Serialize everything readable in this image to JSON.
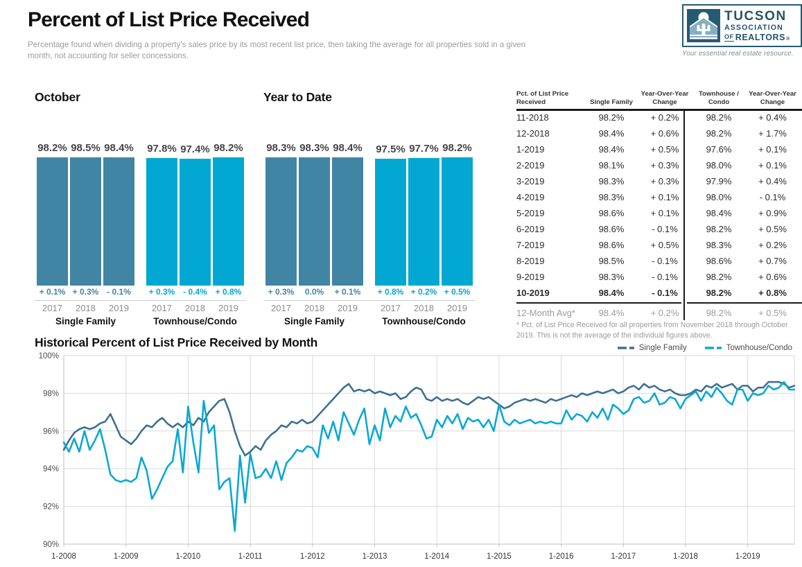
{
  "page": {
    "title": "Percent of List Price Received",
    "subtitle": "Percentage found when dividing a property's sales price by its most recent list price, then taking the average for all properties sold in a given month, not accounting for seller concessions."
  },
  "logo": {
    "name_top": "TUCSON",
    "name_mid": "ASSOCIATION",
    "name_of": "OF",
    "name_bottom": "REALTORS",
    "reg_mark": "®",
    "tagline": "Your essential real estate resource."
  },
  "colors": {
    "single_family": "#4185a5",
    "townhouse_condo": "#02a8d1",
    "single_family_line": "#3e708f",
    "townhouse_condo_line": "#09a8d4",
    "grid": "#d9d9d9",
    "axis": "#bfbfbf"
  },
  "chart_data": [
    {
      "id": "october-bars",
      "type": "bar",
      "title": "October",
      "ylim": [
        0,
        100
      ],
      "groups": [
        {
          "label": "Single Family",
          "color_key": "single_family",
          "years": [
            "2017",
            "2018",
            "2019"
          ],
          "values": [
            98.2,
            98.5,
            98.4
          ],
          "value_labels": [
            "98.2%",
            "98.5%",
            "98.4%"
          ],
          "yoy_changes": [
            "+ 0.1%",
            "+ 0.3%",
            "- 0.1%"
          ]
        },
        {
          "label": "Townhouse/Condo",
          "color_key": "townhouse_condo",
          "years": [
            "2017",
            "2018",
            "2019"
          ],
          "values": [
            97.8,
            97.4,
            98.2
          ],
          "value_labels": [
            "97.8%",
            "97.4%",
            "98.2%"
          ],
          "yoy_changes": [
            "+ 0.3%",
            "- 0.4%",
            "+ 0.8%"
          ]
        }
      ]
    },
    {
      "id": "ytd-bars",
      "type": "bar",
      "title": "Year to Date",
      "ylim": [
        0,
        100
      ],
      "groups": [
        {
          "label": "Single Family",
          "color_key": "single_family",
          "years": [
            "2017",
            "2018",
            "2019"
          ],
          "values": [
            98.3,
            98.3,
            98.4
          ],
          "value_labels": [
            "98.3%",
            "98.3%",
            "98.4%"
          ],
          "yoy_changes": [
            "+ 0.3%",
            "0.0%",
            "+ 0.1%"
          ]
        },
        {
          "label": "Townhouse/Condo",
          "color_key": "townhouse_condo",
          "years": [
            "2017",
            "2018",
            "2019"
          ],
          "values": [
            97.5,
            97.7,
            98.2
          ],
          "value_labels": [
            "97.5%",
            "97.7%",
            "98.2%"
          ],
          "yoy_changes": [
            "+ 0.8%",
            "+ 0.2%",
            "+ 0.5%"
          ]
        }
      ]
    },
    {
      "id": "monthly-table",
      "type": "table",
      "columns": [
        "Pct. of List Price Received",
        "Single Family",
        "Year-Over-Year Change",
        "Townhouse / Condo",
        "Year-Over-Year Change"
      ],
      "rows": [
        [
          "11-2018",
          "98.2%",
          "+ 0.2%",
          "98.2%",
          "+ 0.4%"
        ],
        [
          "12-2018",
          "98.4%",
          "+ 0.6%",
          "98.2%",
          "+ 1.7%"
        ],
        [
          "1-2019",
          "98.4%",
          "+ 0.5%",
          "97.6%",
          "+ 0.1%"
        ],
        [
          "2-2019",
          "98.1%",
          "+ 0.3%",
          "98.0%",
          "+ 0.1%"
        ],
        [
          "3-2019",
          "98.3%",
          "+ 0.3%",
          "97.9%",
          "+ 0.4%"
        ],
        [
          "4-2019",
          "98.3%",
          "+ 0.1%",
          "98.0%",
          "- 0.1%"
        ],
        [
          "5-2019",
          "98.6%",
          "+ 0.1%",
          "98.4%",
          "+ 0.9%"
        ],
        [
          "6-2019",
          "98.6%",
          "- 0.1%",
          "98.2%",
          "+ 0.5%"
        ],
        [
          "7-2019",
          "98.6%",
          "+ 0.5%",
          "98.3%",
          "+ 0.2%"
        ],
        [
          "8-2019",
          "98.5%",
          "- 0.1%",
          "98.6%",
          "+ 0.7%"
        ],
        [
          "9-2019",
          "98.3%",
          "- 0.1%",
          "98.2%",
          "+ 0.6%"
        ],
        [
          "10-2019",
          "98.4%",
          "- 0.1%",
          "98.2%",
          "+ 0.8%"
        ]
      ],
      "emphasized_row": "10-2019",
      "summary_row": [
        "12-Month Avg*",
        "98.4%",
        "+ 0.2%",
        "98.2%",
        "+ 0.5%"
      ],
      "footnote": "* Pct. of List Price Received for all properties from November 2018 through October 2019. This is not the average of the individual figures above."
    },
    {
      "id": "historical-line",
      "type": "line",
      "title": "Historical Percent of List Price Received by Month",
      "months_start": "1-2008",
      "months_end": "10-2019",
      "ylim": [
        90,
        100
      ],
      "y_tick_labels": [
        "100%",
        "98%",
        "96%",
        "94%",
        "92%",
        "90%"
      ],
      "x_tick_labels": [
        "1-2008",
        "1-2009",
        "1-2010",
        "1-2011",
        "1-2012",
        "1-2013",
        "1-2014",
        "1-2015",
        "1-2016",
        "1-2017",
        "1-2018",
        "1-2019"
      ],
      "series": [
        {
          "name": "Single Family",
          "color_key": "single_family_line",
          "values": [
            95.0,
            95.5,
            95.9,
            96.1,
            96.2,
            96.1,
            96.2,
            96.4,
            96.5,
            96.9,
            96.3,
            95.7,
            95.5,
            95.3,
            95.6,
            96.0,
            96.3,
            96.2,
            96.5,
            96.7,
            96.4,
            96.2,
            96.4,
            96.2,
            96.5,
            96.3,
            96.7,
            96.5,
            97.0,
            97.3,
            97.6,
            97.7,
            97.0,
            96.0,
            95.2,
            94.7,
            94.9,
            95.2,
            95.0,
            95.5,
            95.8,
            96.0,
            96.3,
            96.2,
            96.5,
            96.4,
            96.6,
            96.4,
            96.5,
            96.8,
            97.1,
            97.4,
            97.7,
            98.0,
            98.3,
            98.5,
            98.1,
            98.2,
            98.1,
            98.2,
            98.0,
            98.1,
            98.0,
            97.9,
            98.0,
            97.7,
            97.8,
            98.1,
            98.3,
            98.2,
            97.7,
            97.6,
            97.8,
            97.6,
            97.7,
            97.6,
            97.7,
            97.5,
            97.4,
            97.6,
            97.8,
            97.7,
            97.8,
            97.6,
            97.4,
            97.2,
            97.3,
            97.5,
            97.6,
            97.7,
            97.6,
            97.7,
            97.6,
            97.5,
            97.7,
            97.6,
            97.7,
            97.8,
            97.9,
            97.8,
            98.0,
            97.9,
            98.0,
            98.1,
            98.0,
            98.1,
            98.2,
            98.0,
            98.1,
            98.3,
            98.4,
            98.2,
            98.5,
            98.3,
            98.4,
            98.2,
            98.1,
            98.2,
            98.0,
            97.9,
            97.9,
            98.0,
            98.2,
            98.1,
            98.4,
            98.3,
            98.5,
            98.3,
            98.4,
            98.5,
            98.2,
            98.4,
            98.4,
            98.1,
            98.3,
            98.3,
            98.6,
            98.6,
            98.6,
            98.5,
            98.3,
            98.4
          ]
        },
        {
          "name": "Townhouse/Condo",
          "color_key": "townhouse_condo_line",
          "values": [
            95.4,
            94.9,
            95.6,
            94.9,
            96.0,
            95.0,
            95.5,
            96.1,
            95.0,
            93.7,
            93.4,
            93.3,
            93.4,
            93.3,
            93.5,
            94.6,
            93.9,
            92.4,
            92.9,
            93.5,
            94.1,
            94.4,
            96.1,
            93.8,
            97.3,
            95.4,
            93.8,
            97.6,
            95.9,
            96.3,
            92.9,
            93.3,
            93.5,
            90.7,
            94.7,
            92.2,
            94.8,
            93.5,
            93.6,
            94.0,
            93.5,
            94.4,
            93.4,
            94.3,
            94.6,
            95.0,
            94.9,
            95.2,
            95.1,
            94.6,
            96.3,
            95.6,
            96.5,
            95.5,
            97.0,
            96.4,
            95.8,
            96.6,
            97.2,
            95.3,
            96.3,
            95.5,
            97.2,
            96.2,
            96.8,
            96.5,
            97.3,
            96.7,
            96.9,
            96.3,
            95.6,
            95.7,
            96.6,
            96.2,
            96.8,
            96.4,
            96.9,
            96.1,
            96.7,
            96.5,
            96.6,
            96.2,
            96.6,
            96.0,
            97.4,
            96.5,
            96.3,
            96.6,
            96.4,
            96.5,
            96.6,
            96.4,
            96.5,
            96.4,
            96.5,
            96.4,
            96.4,
            97.1,
            96.6,
            96.9,
            96.8,
            96.5,
            97.0,
            96.7,
            97.2,
            96.6,
            97.4,
            97.2,
            96.9,
            97.1,
            97.7,
            97.8,
            97.5,
            97.6,
            98.0,
            97.4,
            97.5,
            97.8,
            97.7,
            97.2,
            97.7,
            97.9,
            98.1,
            97.6,
            98.1,
            97.8,
            98.3,
            98.0,
            97.6,
            97.4,
            98.2,
            98.2,
            97.6,
            98.0,
            97.9,
            98.0,
            98.4,
            98.2,
            98.3,
            98.6,
            98.2,
            98.2
          ]
        }
      ]
    }
  ]
}
